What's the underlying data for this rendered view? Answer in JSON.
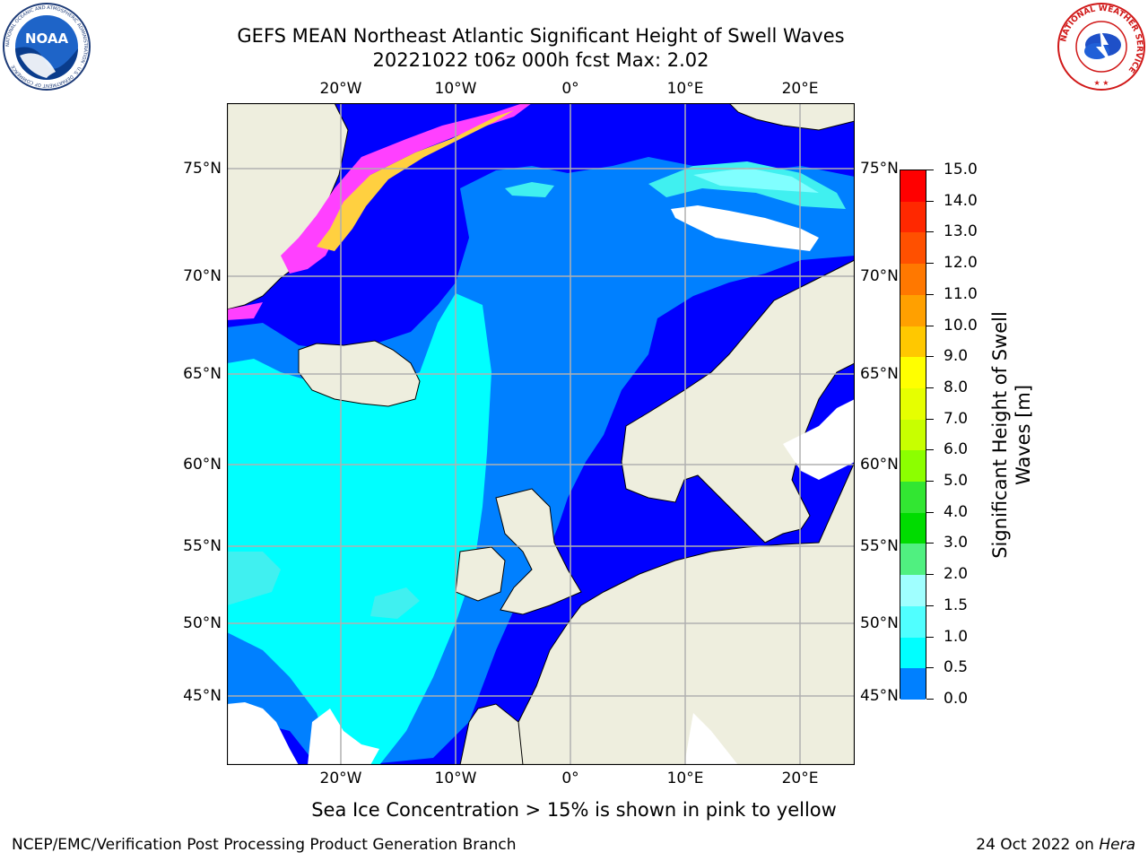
{
  "title": {
    "line1": "GEFS MEAN Northeast Atlantic Significant Height of Swell Waves",
    "line2": "20221022 t06z 000h fcst   Max: 2.02"
  },
  "map": {
    "top_lon_labels": [
      "20°W",
      "10°W",
      "0°",
      "10°E",
      "20°E"
    ],
    "bottom_lon_labels": [
      "20°W",
      "10°W",
      "0°",
      "10°E",
      "20°E"
    ],
    "left_lat_labels": [
      "75°N",
      "70°N",
      "65°N",
      "60°N",
      "55°N",
      "50°N",
      "45°N"
    ],
    "right_lat_labels": [
      "75°N",
      "70°N",
      "65°N",
      "60°N",
      "55°N",
      "50°N",
      "45°N"
    ],
    "colors": {
      "land": "#eeeede",
      "no_data": "#ffffff",
      "c_0_05": "#0000ff",
      "c_05_10": "#0080ff",
      "c_10_15": "#00ffff",
      "c_15_20": "#40f0f0",
      "c_20_25": "#80ffff",
      "ice_pink": "#ff40ff",
      "ice_yellow": "#ffd040",
      "grid": "#b0b0b0"
    }
  },
  "colorbar": {
    "label_line1": "Significant Height of Swell",
    "label_line2": "Waves [m]",
    "ticks": [
      "15.0",
      "14.0",
      "13.0",
      "12.0",
      "11.0",
      "10.0",
      "9.0",
      "8.0",
      "7.0",
      "6.0",
      "5.0",
      "4.0",
      "3.0",
      "2.0",
      "1.5",
      "1.0",
      "0.5",
      "0.0"
    ],
    "colors": [
      "#ff0000",
      "#ff2800",
      "#ff5000",
      "#ff7800",
      "#ffa000",
      "#ffc800",
      "#ffff00",
      "#e6ff00",
      "#c8ff00",
      "#8cff00",
      "#32e632",
      "#00dc00",
      "#50f080",
      "#a0ffff",
      "#50ffff",
      "#00ffff",
      "#0080ff",
      "#0000ff"
    ]
  },
  "subtitle": "Sea Ice Concentration > 15% is shown in pink to yellow",
  "footer": {
    "left": "NCEP/EMC/Verification Post Processing Product Generation Branch",
    "right_prefix": "24 Oct 2022 on ",
    "right_machine": "Hera"
  },
  "logos": {
    "noaa_text": "NOAA",
    "noaa_ring": "NATIONAL OCEANIC AND ATMOSPHERIC ADMINISTRATION · U.S. DEPARTMENT OF COMMERCE",
    "nws_ring": "NATIONAL WEATHER SERVICE"
  }
}
